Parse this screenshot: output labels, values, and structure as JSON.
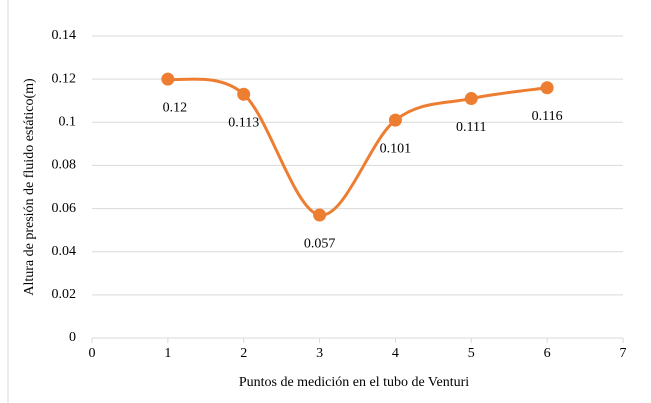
{
  "chart_data": {
    "type": "scatter",
    "smooth": true,
    "xlabel": "Puntos de medición en el tubo de Venturi",
    "ylabel": "Altura de presión de fluido estático(m)",
    "x": [
      1,
      2,
      3,
      4,
      5,
      6
    ],
    "series": [
      {
        "name": null,
        "color": "#ed7d31",
        "values": [
          0.12,
          0.113,
          0.057,
          0.101,
          0.111,
          0.116
        ]
      }
    ],
    "xlim": [
      0,
      7
    ],
    "xticks": [
      0,
      1,
      2,
      3,
      4,
      5,
      6,
      7
    ],
    "ylim": [
      0,
      0.14
    ],
    "yticks": [
      0,
      0.02,
      0.04,
      0.06,
      0.08,
      0.1,
      0.12,
      0.14
    ],
    "grid": true,
    "data_labels": true
  }
}
